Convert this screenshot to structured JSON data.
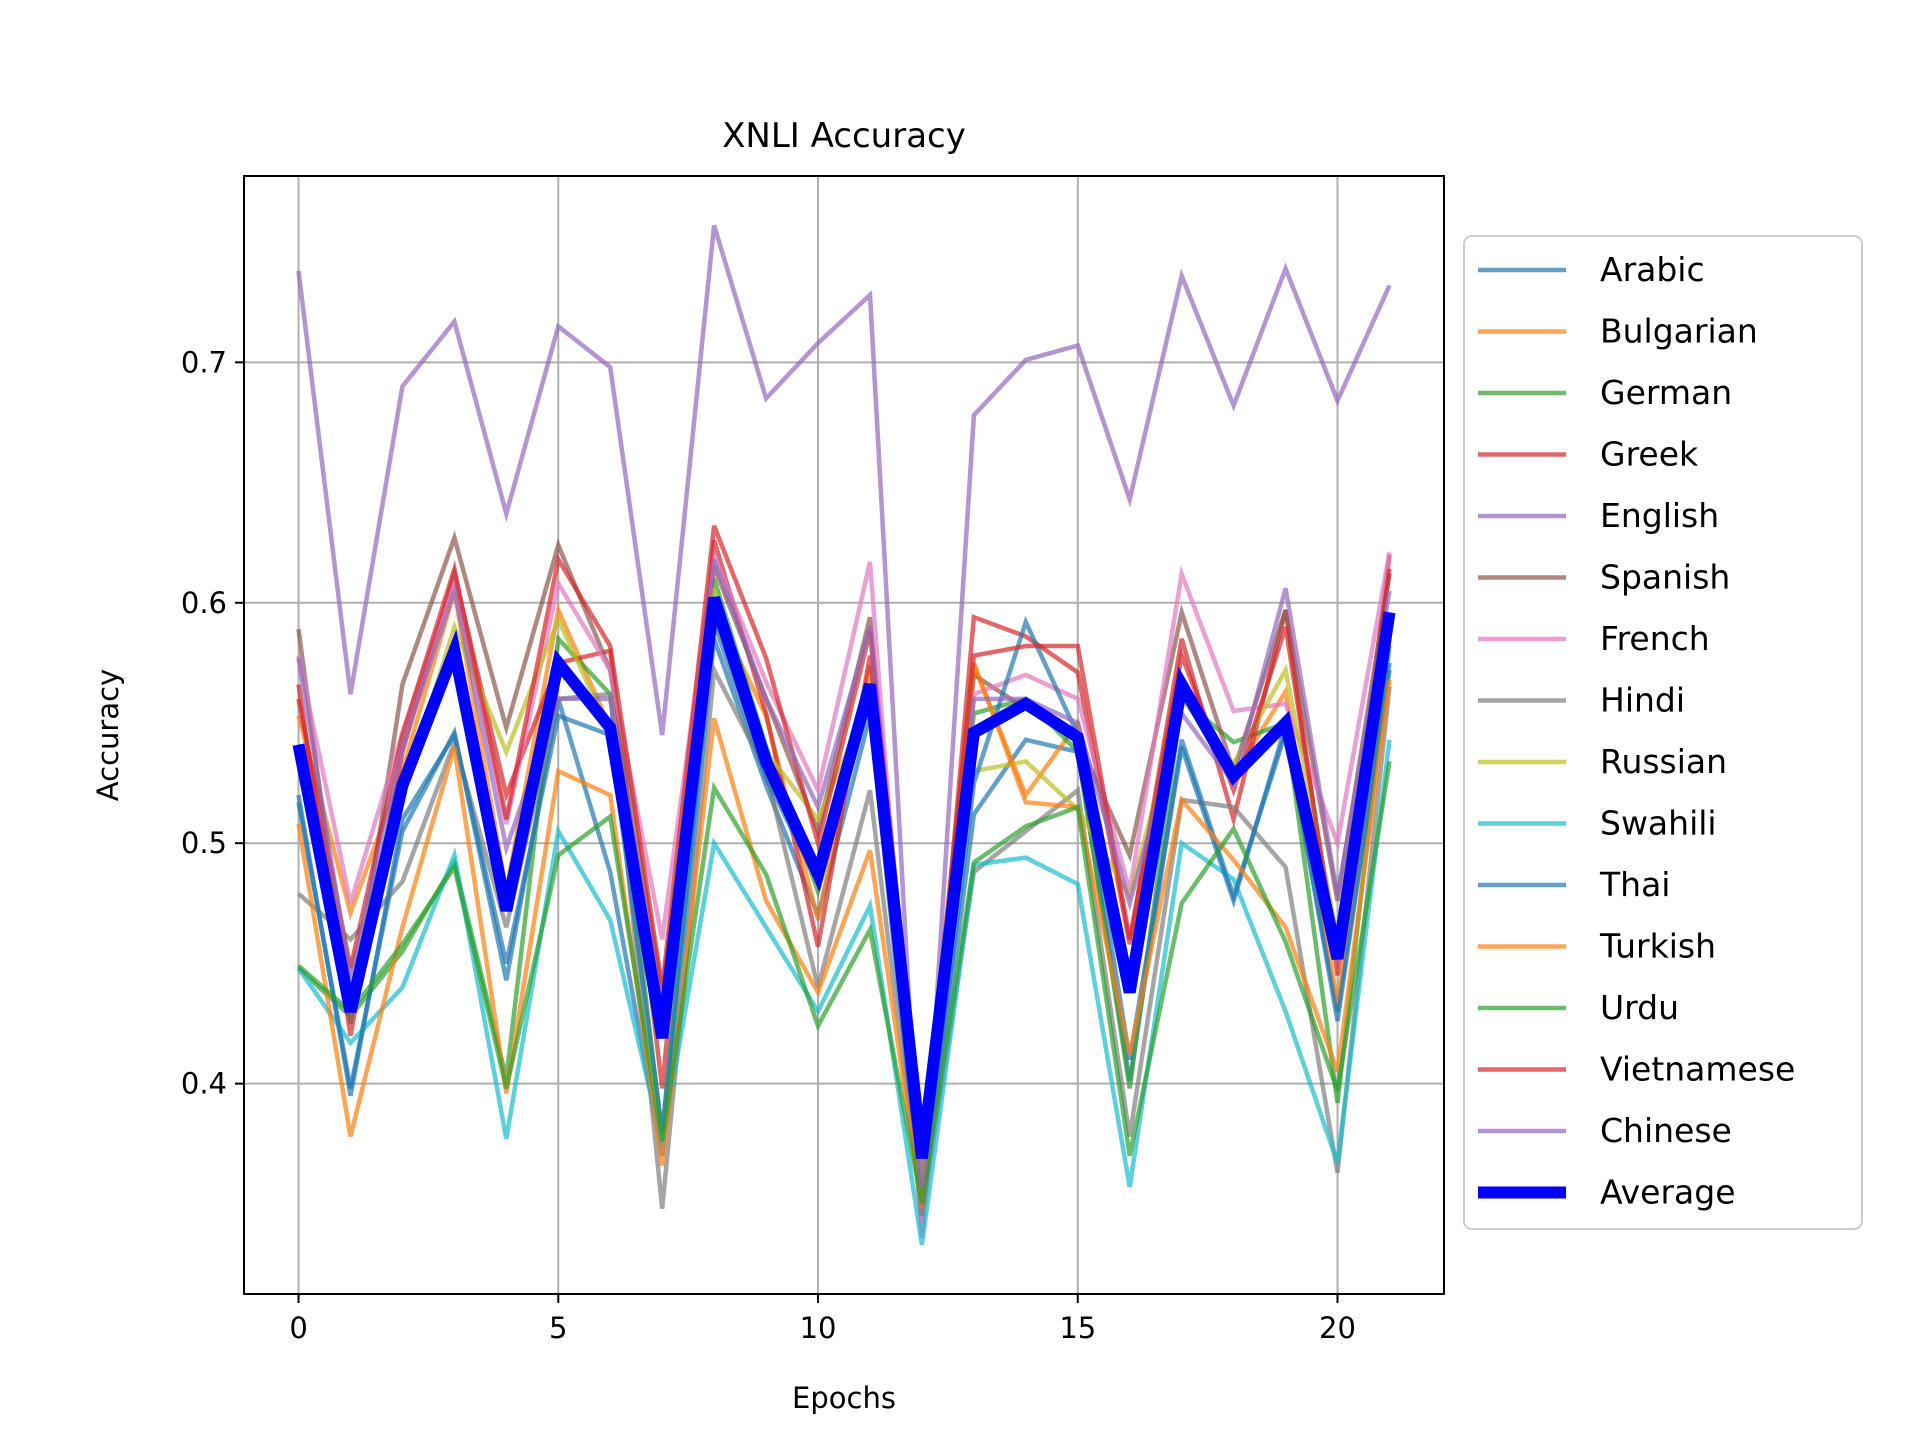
{
  "chart_data": {
    "type": "line",
    "title": "XNLI Accuracy",
    "xlabel": "Epochs",
    "ylabel": "Accuracy",
    "xlim": [
      -1.05,
      22.05
    ],
    "ylim": [
      0.3125,
      0.7775
    ],
    "x_ticks": [
      0,
      5,
      10,
      15,
      20
    ],
    "y_ticks": [
      0.4,
      0.5,
      0.6,
      0.7
    ],
    "x_tick_labels": [
      "0",
      "5",
      "10",
      "15",
      "20"
    ],
    "y_tick_labels": [
      "0.4",
      "0.5",
      "0.6",
      "0.7"
    ],
    "grid": true,
    "legend_position": "outside-right",
    "x": [
      0,
      1,
      2,
      3,
      4,
      5,
      6,
      7,
      8,
      9,
      10,
      11,
      12,
      13,
      14,
      15,
      16,
      17,
      18,
      19,
      20,
      21
    ],
    "series": [
      {
        "name": "Arabic",
        "color": "#1f77b4",
        "values": [
          0.517,
          0.398,
          0.505,
          0.546,
          0.443,
          0.56,
          0.488,
          0.37,
          0.585,
          0.524,
          0.47,
          0.553,
          0.345,
          0.512,
          0.543,
          0.538,
          0.401,
          0.543,
          0.478,
          0.546,
          0.43,
          0.572
        ]
      },
      {
        "name": "Bulgarian",
        "color": "#ff7f0e",
        "values": [
          0.553,
          0.471,
          0.53,
          0.605,
          0.48,
          0.597,
          0.548,
          0.43,
          0.598,
          0.553,
          0.468,
          0.574,
          0.361,
          0.574,
          0.52,
          0.55,
          0.445,
          0.565,
          0.528,
          0.563,
          0.433,
          0.585
        ]
      },
      {
        "name": "German",
        "color": "#2ca02c",
        "values": [
          0.448,
          0.428,
          0.455,
          0.492,
          0.402,
          0.585,
          0.562,
          0.378,
          0.61,
          0.54,
          0.48,
          0.563,
          0.362,
          0.554,
          0.56,
          0.538,
          0.398,
          0.56,
          0.542,
          0.55,
          0.392,
          0.582
        ]
      },
      {
        "name": "Greek",
        "color": "#d62728",
        "values": [
          0.566,
          0.42,
          0.538,
          0.612,
          0.52,
          0.575,
          0.58,
          0.398,
          0.626,
          0.554,
          0.457,
          0.578,
          0.35,
          0.594,
          0.586,
          0.571,
          0.458,
          0.585,
          0.51,
          0.597,
          0.445,
          0.62
        ]
      },
      {
        "name": "English",
        "color": "#9467bd",
        "values": [
          0.738,
          0.562,
          0.69,
          0.717,
          0.637,
          0.715,
          0.698,
          0.545,
          0.757,
          0.685,
          0.708,
          0.728,
          0.338,
          0.678,
          0.701,
          0.707,
          0.643,
          0.736,
          0.682,
          0.739,
          0.684,
          0.732
        ]
      },
      {
        "name": "Spanish",
        "color": "#8c564b",
        "values": [
          0.589,
          0.425,
          0.566,
          0.627,
          0.548,
          0.624,
          0.572,
          0.437,
          0.615,
          0.56,
          0.505,
          0.594,
          0.372,
          0.57,
          0.556,
          0.543,
          0.495,
          0.596,
          0.53,
          0.597,
          0.476,
          0.612
        ]
      },
      {
        "name": "French",
        "color": "#e377c2",
        "values": [
          0.578,
          0.475,
          0.546,
          0.61,
          0.508,
          0.608,
          0.572,
          0.46,
          0.62,
          0.567,
          0.522,
          0.617,
          0.336,
          0.562,
          0.57,
          0.56,
          0.48,
          0.612,
          0.555,
          0.558,
          0.5,
          0.621
        ]
      },
      {
        "name": "Hindi",
        "color": "#7f7f7f",
        "values": [
          0.479,
          0.46,
          0.484,
          0.542,
          0.465,
          0.56,
          0.562,
          0.348,
          0.572,
          0.53,
          0.44,
          0.522,
          0.345,
          0.488,
          0.505,
          0.522,
          0.378,
          0.518,
          0.515,
          0.49,
          0.363,
          0.565
        ]
      },
      {
        "name": "Russian",
        "color": "#bcbd22",
        "values": [
          0.54,
          0.447,
          0.52,
          0.59,
          0.538,
          0.593,
          0.546,
          0.42,
          0.606,
          0.538,
          0.51,
          0.56,
          0.361,
          0.53,
          0.534,
          0.514,
          0.478,
          0.56,
          0.533,
          0.572,
          0.46,
          0.59
        ]
      },
      {
        "name": "Swahili",
        "color": "#17becf",
        "values": [
          0.448,
          0.417,
          0.44,
          0.495,
          0.377,
          0.505,
          0.468,
          0.375,
          0.5,
          0.465,
          0.43,
          0.474,
          0.333,
          0.491,
          0.494,
          0.483,
          0.357,
          0.5,
          0.485,
          0.43,
          0.367,
          0.543
        ]
      },
      {
        "name": "Thai",
        "color": "#1f77b4",
        "values": [
          0.52,
          0.395,
          0.51,
          0.545,
          0.45,
          0.553,
          0.545,
          0.38,
          0.592,
          0.527,
          0.484,
          0.563,
          0.348,
          0.525,
          0.592,
          0.545,
          0.41,
          0.54,
          0.476,
          0.549,
          0.426,
          0.575
        ]
      },
      {
        "name": "Turkish",
        "color": "#ff7f0e",
        "values": [
          0.508,
          0.378,
          0.465,
          0.54,
          0.396,
          0.53,
          0.52,
          0.366,
          0.552,
          0.476,
          0.438,
          0.497,
          0.348,
          0.575,
          0.517,
          0.515,
          0.412,
          0.518,
          0.493,
          0.465,
          0.405,
          0.568
        ]
      },
      {
        "name": "Urdu",
        "color": "#2ca02c",
        "values": [
          0.449,
          0.43,
          0.458,
          0.49,
          0.398,
          0.495,
          0.511,
          0.376,
          0.523,
          0.487,
          0.424,
          0.464,
          0.35,
          0.492,
          0.507,
          0.515,
          0.37,
          0.475,
          0.506,
          0.459,
          0.397,
          0.534
        ]
      },
      {
        "name": "Vietnamese",
        "color": "#d62728",
        "values": [
          0.56,
          0.448,
          0.545,
          0.614,
          0.51,
          0.618,
          0.582,
          0.44,
          0.632,
          0.577,
          0.5,
          0.588,
          0.37,
          0.578,
          0.582,
          0.582,
          0.46,
          0.578,
          0.522,
          0.59,
          0.452,
          0.614
        ]
      },
      {
        "name": "Chinese",
        "color": "#9467bd",
        "values": [
          0.577,
          0.443,
          0.54,
          0.605,
          0.498,
          0.56,
          0.56,
          0.431,
          0.618,
          0.56,
          0.515,
          0.59,
          0.357,
          0.56,
          0.56,
          0.55,
          0.475,
          0.554,
          0.525,
          0.606,
          0.478,
          0.605
        ]
      },
      {
        "name": "Average",
        "color": "#0000ff",
        "values": [
          0.541,
          0.43,
          0.524,
          0.58,
          0.472,
          0.575,
          0.548,
          0.419,
          0.602,
          0.534,
          0.487,
          0.566,
          0.369,
          0.546,
          0.558,
          0.544,
          0.438,
          0.566,
          0.528,
          0.55,
          0.452,
          0.596
        ]
      }
    ]
  }
}
